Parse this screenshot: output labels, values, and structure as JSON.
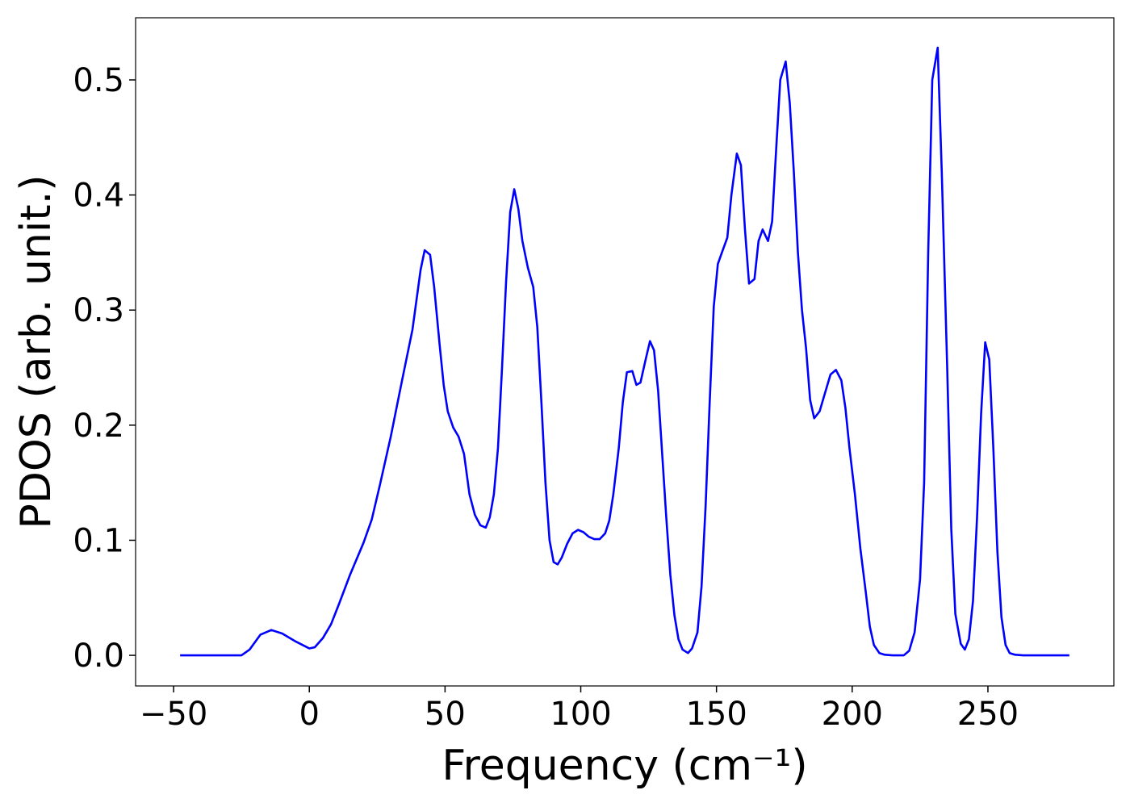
{
  "chart_data": {
    "type": "line",
    "xlabel": "Frequency (cm⁻¹)",
    "ylabel": "PDOS (arb. unit.)",
    "xlim": [
      -64,
      296.4
    ],
    "ylim": [
      -0.0266,
      0.554
    ],
    "xticks": [
      {
        "value": -50,
        "label": "−50"
      },
      0,
      50,
      100,
      150,
      200,
      250
    ],
    "yticks": [
      {
        "value": 0,
        "label": "0.0"
      },
      0.1,
      0.2,
      0.3,
      0.4,
      0.5
    ],
    "grid": false,
    "x": [
      -47.6,
      -25,
      -22,
      -18,
      -14,
      -10,
      -5,
      0,
      2,
      5,
      8,
      11,
      15,
      20,
      23,
      26,
      30,
      34,
      38,
      41,
      42.5,
      44.5,
      46,
      48,
      49.5,
      51,
      53,
      55,
      57,
      59,
      61,
      63,
      65,
      66.5,
      68,
      69.5,
      71,
      72.5,
      74,
      75.5,
      77,
      78.5,
      80.5,
      82.5,
      84,
      85.5,
      87,
      88.5,
      90,
      91.5,
      93,
      95,
      97,
      99,
      101,
      103,
      105,
      107,
      109,
      110.5,
      112,
      114,
      115.5,
      117,
      119,
      120.5,
      122,
      124,
      125.5,
      127,
      128.5,
      130,
      131.5,
      133,
      134.5,
      136,
      137.5,
      139.5,
      141,
      143,
      144.5,
      146,
      147.5,
      149,
      150.5,
      152,
      154,
      155.5,
      157.5,
      159,
      160.5,
      162,
      164,
      165.5,
      167,
      169,
      170.5,
      172,
      173.5,
      175.5,
      177,
      178.5,
      180,
      181.5,
      183,
      184.5,
      186,
      188,
      190,
      192,
      194,
      196,
      197.5,
      199,
      201,
      203,
      205,
      206.5,
      208,
      210,
      212,
      215,
      219,
      221,
      223,
      225,
      226.5,
      228,
      229.5,
      231.5,
      233,
      235,
      236.5,
      238,
      240,
      241.5,
      243,
      244.5,
      246,
      247.5,
      249,
      250.5,
      252,
      253.5,
      255,
      256.5,
      258,
      260,
      263,
      280
    ],
    "series": [
      {
        "name": "PDOS",
        "color": "#0000ff",
        "values": [
          0,
          0,
          0.005,
          0.018,
          0.022,
          0.019,
          0.012,
          0.006,
          0.007,
          0.015,
          0.027,
          0.045,
          0.07,
          0.098,
          0.118,
          0.148,
          0.19,
          0.237,
          0.283,
          0.335,
          0.352,
          0.348,
          0.32,
          0.27,
          0.235,
          0.212,
          0.198,
          0.19,
          0.175,
          0.14,
          0.122,
          0.113,
          0.111,
          0.12,
          0.14,
          0.18,
          0.25,
          0.325,
          0.385,
          0.405,
          0.388,
          0.36,
          0.337,
          0.32,
          0.285,
          0.22,
          0.15,
          0.1,
          0.081,
          0.079,
          0.085,
          0.097,
          0.106,
          0.109,
          0.107,
          0.103,
          0.101,
          0.101,
          0.106,
          0.117,
          0.14,
          0.18,
          0.22,
          0.246,
          0.247,
          0.235,
          0.237,
          0.258,
          0.273,
          0.265,
          0.23,
          0.175,
          0.12,
          0.07,
          0.035,
          0.014,
          0.005,
          0.002,
          0.006,
          0.02,
          0.06,
          0.13,
          0.22,
          0.303,
          0.34,
          0.35,
          0.363,
          0.4,
          0.436,
          0.426,
          0.37,
          0.323,
          0.327,
          0.36,
          0.37,
          0.36,
          0.377,
          0.44,
          0.5,
          0.516,
          0.48,
          0.42,
          0.35,
          0.3,
          0.267,
          0.222,
          0.206,
          0.212,
          0.228,
          0.244,
          0.248,
          0.239,
          0.215,
          0.18,
          0.14,
          0.093,
          0.055,
          0.025,
          0.009,
          0.002,
          0.0005,
          0,
          0,
          0.004,
          0.02,
          0.066,
          0.15,
          0.35,
          0.5,
          0.528,
          0.42,
          0.25,
          0.11,
          0.036,
          0.01,
          0.005,
          0.014,
          0.047,
          0.12,
          0.21,
          0.272,
          0.257,
          0.18,
          0.09,
          0.033,
          0.009,
          0.002,
          0.0005,
          0,
          0
        ]
      }
    ]
  }
}
